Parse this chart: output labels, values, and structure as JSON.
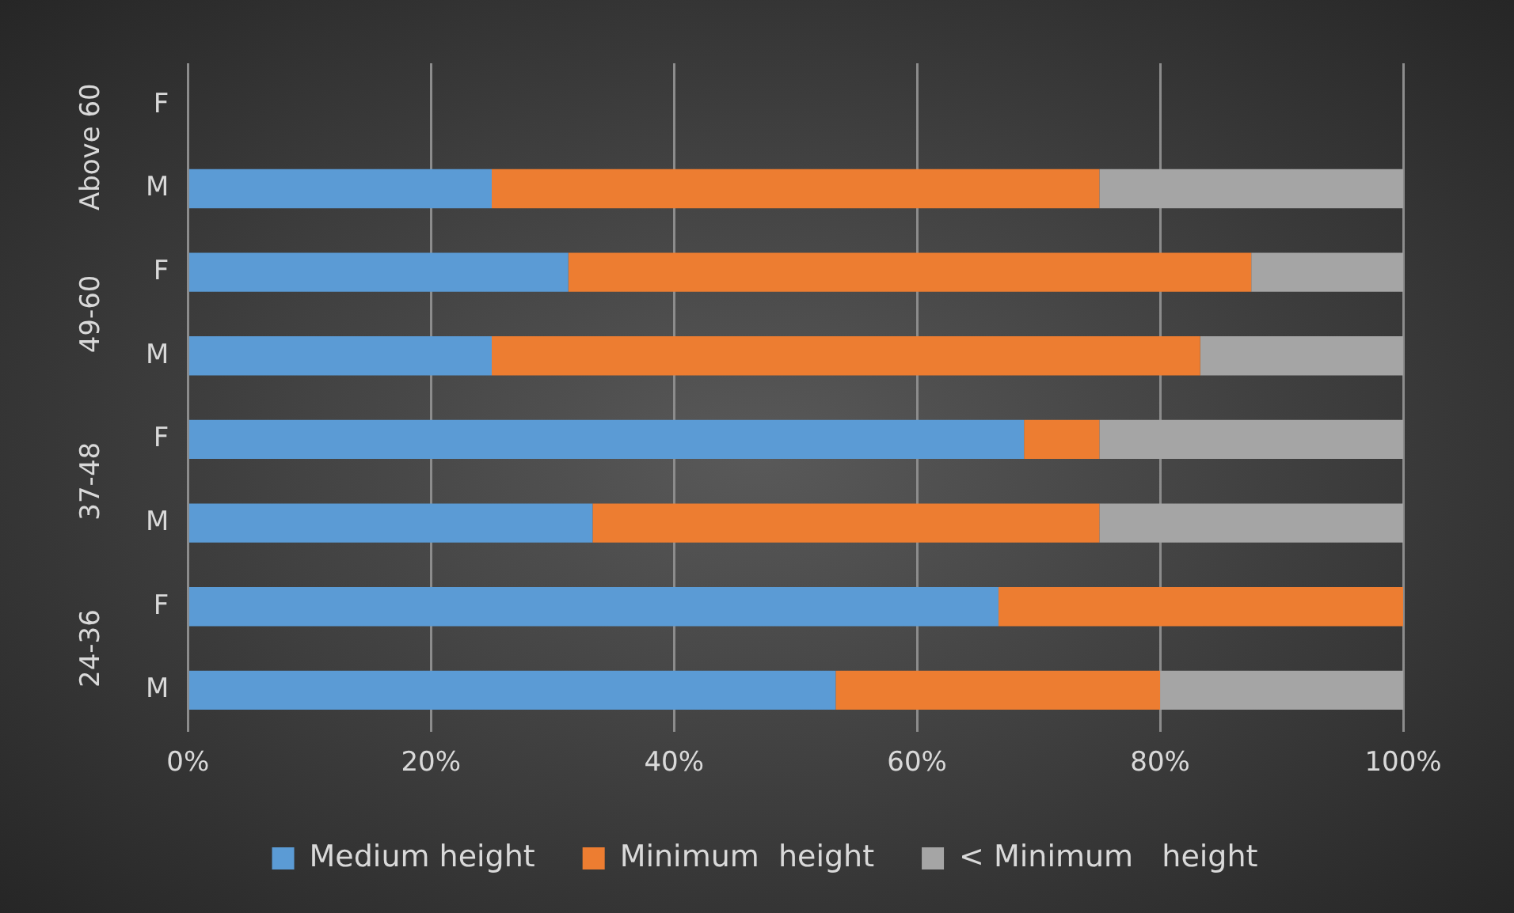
{
  "chart_data": {
    "type": "bar",
    "orientation": "horizontal",
    "stacked": true,
    "categories": [
      "F",
      "M",
      "F",
      "M",
      "F",
      "M",
      "F",
      "M"
    ],
    "annotations": [
      "Above 60",
      "49-60",
      "37-48",
      "24-36"
    ],
    "series": [
      {
        "name": "Medium height",
        "color": "#5b9bd5",
        "values": [
          0,
          25,
          31.3,
          25,
          68.8,
          33.3,
          66.7,
          53.3
        ]
      },
      {
        "name": "Minimum  height",
        "color": "#ed7d31",
        "values": [
          0,
          50,
          56.2,
          58.3,
          6.2,
          41.7,
          33.3,
          26.7
        ]
      },
      {
        "name": "< Minimum   height",
        "color": "#a5a5a5",
        "values": [
          0,
          25,
          12.5,
          16.7,
          25,
          25,
          0,
          20
        ]
      }
    ],
    "xlim": [
      0,
      100
    ],
    "xticks": [
      {
        "value": 0,
        "label": "0%"
      },
      {
        "value": 20,
        "label": "20%"
      },
      {
        "value": 40,
        "label": "40%"
      },
      {
        "value": 60,
        "label": "60%"
      },
      {
        "value": 80,
        "label": "80%"
      },
      {
        "value": 100,
        "label": "100%"
      }
    ],
    "grid": "x",
    "legend": "bottom"
  }
}
